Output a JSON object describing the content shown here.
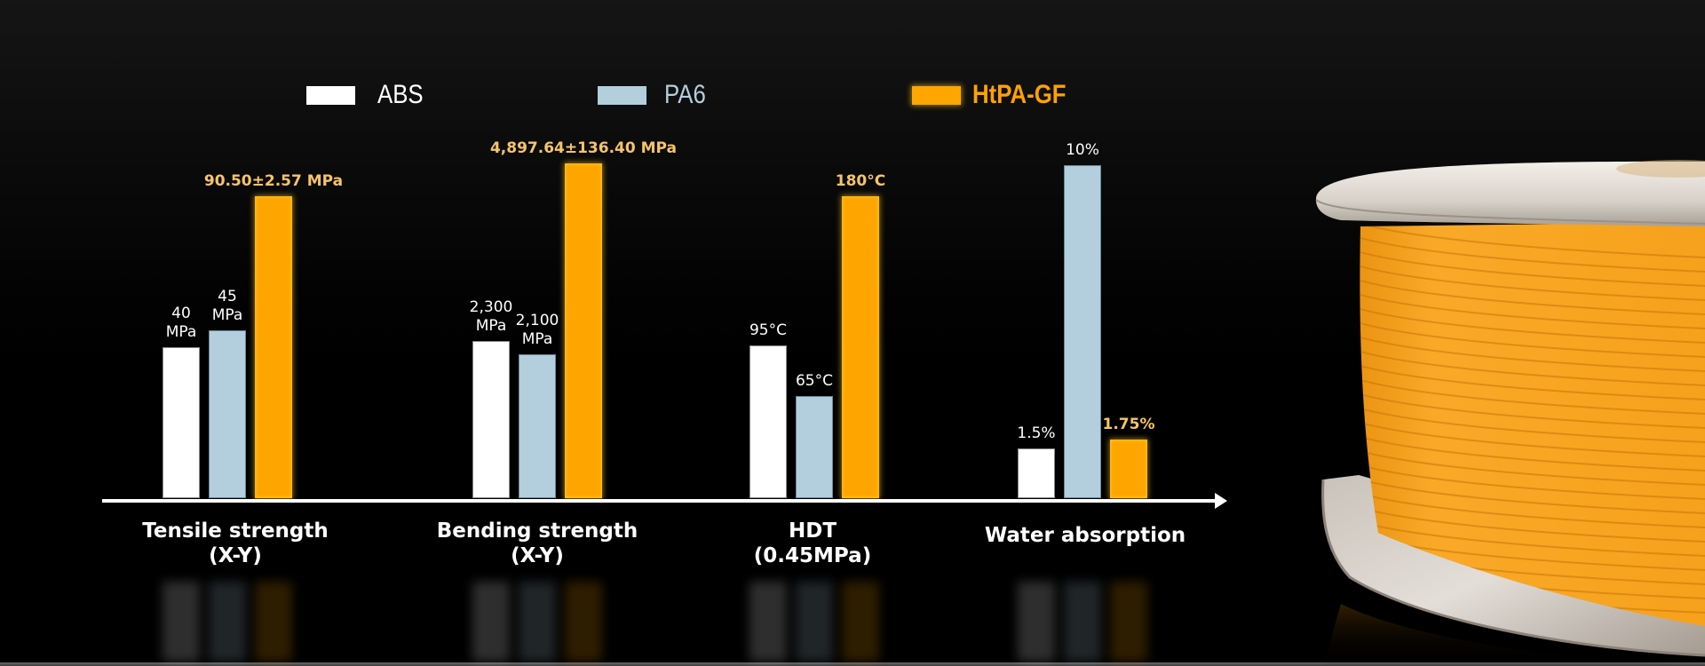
{
  "chart_data": {
    "type": "bar",
    "title": "",
    "xlabel": "",
    "ylabel": "",
    "grid": false,
    "legend_position": "top",
    "categories": [
      {
        "line1": "Tensile strength",
        "line2": "(X-Y)"
      },
      {
        "line1": "Bending strength",
        "line2": "(X-Y)"
      },
      {
        "line1": "HDT",
        "line2": "(0.45MPa)"
      },
      {
        "line1": "Water absorption",
        "line2": ""
      }
    ],
    "series": [
      {
        "name": "ABS",
        "color": "#ffffff",
        "values": [
          40,
          2300,
          95,
          1.5
        ],
        "labels": [
          [
            "40",
            "MPa"
          ],
          [
            "2,300",
            "MPa"
          ],
          [
            "95°C"
          ],
          [
            "1.5%"
          ]
        ]
      },
      {
        "name": "PA6",
        "color": "#b3cfdd",
        "values": [
          45,
          2100,
          65,
          10
        ],
        "labels": [
          [
            "45",
            "MPa"
          ],
          [
            "2,100",
            "MPa"
          ],
          [
            "65°C"
          ],
          [
            "10%"
          ]
        ]
      },
      {
        "name": "HtPA-GF",
        "color": "#ffa500",
        "values": [
          90.5,
          4897.64,
          180,
          1.75
        ],
        "labels": [
          [
            "90.50±2.57 MPa"
          ],
          [
            "4,897.64±136.40 MPa"
          ],
          [
            "180°C"
          ],
          [
            "1.75%"
          ]
        ]
      }
    ],
    "units": [
      "MPa",
      "MPa",
      "°C",
      "%"
    ]
  },
  "colors": {
    "highlight_text": "#f6c46a",
    "legend_pa6_text": "#b3cfdd",
    "legend_htpa_text": "#ffa200",
    "filament": "#f9a51c"
  }
}
